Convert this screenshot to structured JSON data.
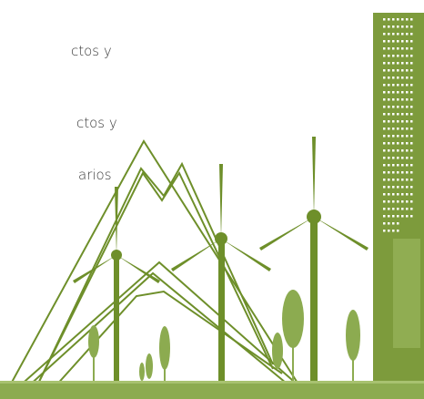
{
  "text_lines": [
    "ctos y",
    "ctos y",
    "arios"
  ]
}
